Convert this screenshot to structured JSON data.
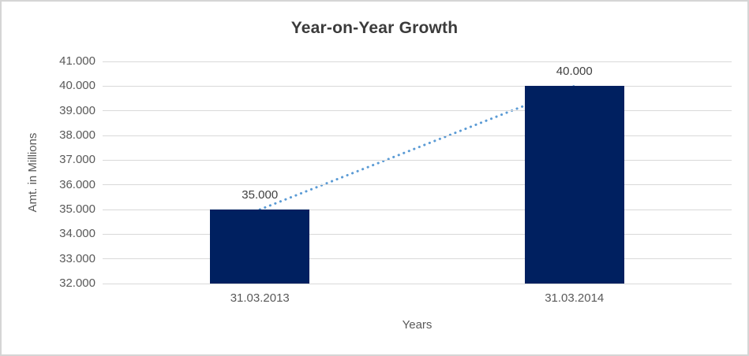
{
  "window": {
    "background": "#FFFFFF",
    "border_color": "#D5D5D5"
  },
  "chart_data": {
    "type": "bar",
    "title": "Year-on-Year Growth",
    "xlabel": "Years",
    "ylabel": "Amt. in Millions",
    "categories": [
      "31.03.2013",
      "31.03.2014"
    ],
    "values": [
      35000,
      40000
    ],
    "data_labels": [
      "35.000",
      "40.000"
    ],
    "ylim": [
      32000,
      41000
    ],
    "yticks": [
      {
        "value": 41000,
        "label": "41.000"
      },
      {
        "value": 40000,
        "label": "40.000"
      },
      {
        "value": 39000,
        "label": "39.000"
      },
      {
        "value": 38000,
        "label": "38.000"
      },
      {
        "value": 37000,
        "label": "37.000"
      },
      {
        "value": 36000,
        "label": "36.000"
      },
      {
        "value": 35000,
        "label": "35.000"
      },
      {
        "value": 34000,
        "label": "34.000"
      },
      {
        "value": 33000,
        "label": "33.000"
      },
      {
        "value": 32000,
        "label": "32.000"
      }
    ],
    "grid": true,
    "legend": false,
    "trendline": {
      "type": "linear",
      "style": "dotted",
      "from_value": 35000,
      "to_value": 40000
    },
    "colors": {
      "bar": "#002060",
      "trendline": "#5B9BD5",
      "gridline": "#D9D9D9",
      "tick_text": "#595959",
      "title_text": "#3B3B3B",
      "data_label_text": "#404040"
    }
  }
}
